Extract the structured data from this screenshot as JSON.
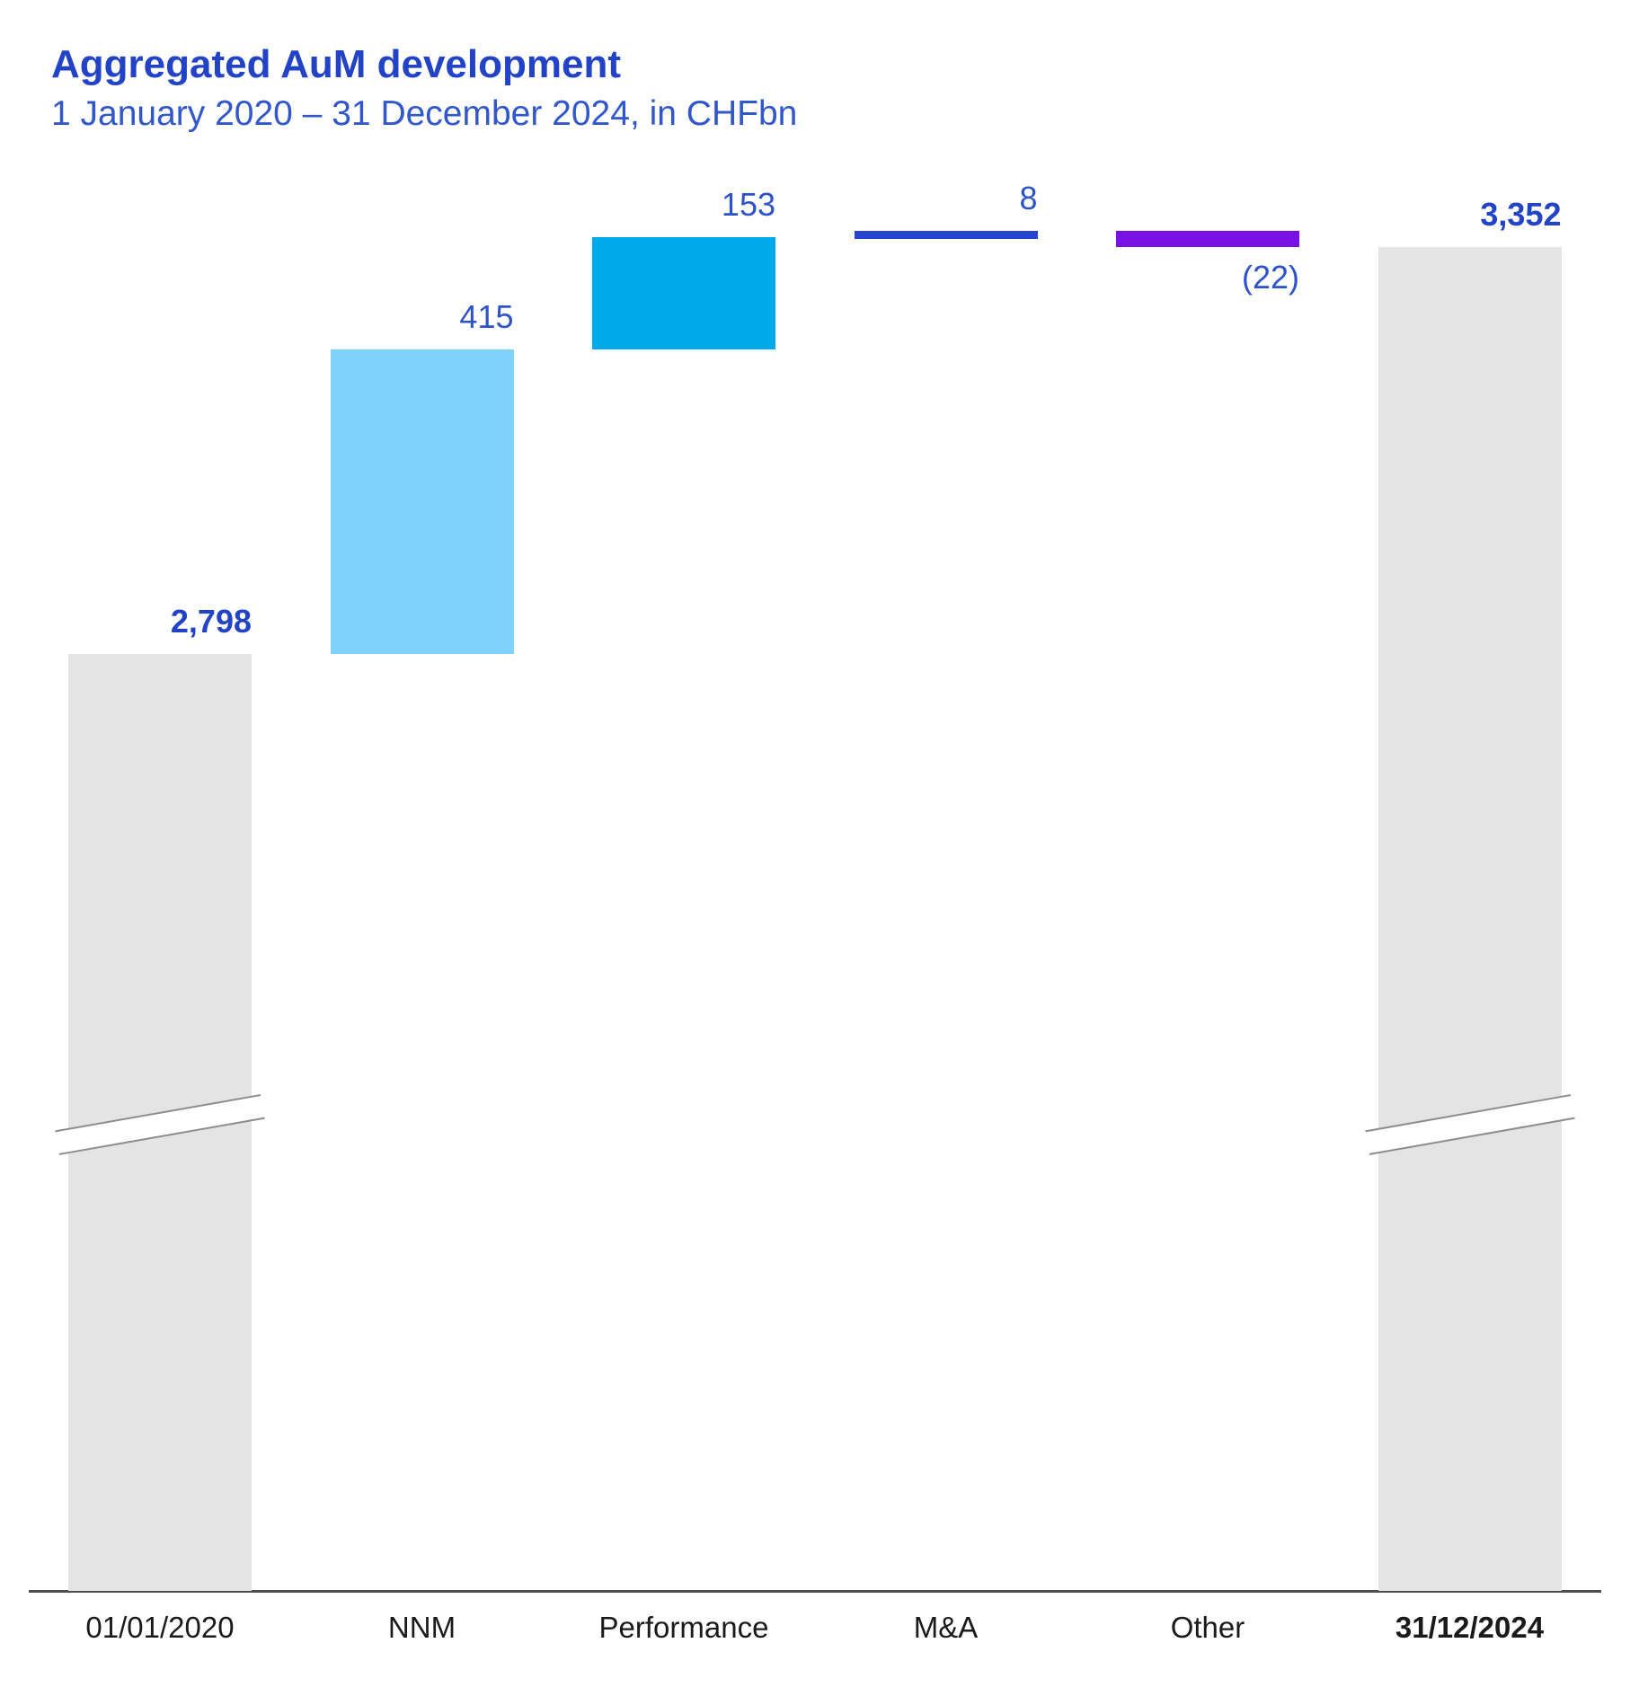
{
  "header": {
    "title": "Aggregated AuM development",
    "subtitle": "1 January 2020 – 31 December 2024, in CHFbn"
  },
  "chart_data": {
    "type": "waterfall",
    "title": "Aggregated AuM development",
    "subtitle": "1 January 2020 – 31 December 2024, in CHFbn",
    "unit": "CHFbn",
    "period": "1 January 2020 – 31 December 2024",
    "categories": [
      "01/01/2020",
      "NNM",
      "Performance",
      "M&A",
      "Other",
      "31/12/2024"
    ],
    "values": [
      2798,
      415,
      153,
      8,
      -22,
      3352
    ],
    "grid": false,
    "legend": "none",
    "axis_break": true,
    "columns": [
      {
        "category": "01/01/2020",
        "role": "total",
        "value": 2798,
        "label": "2,798",
        "color": "#E4E4E4",
        "label_bold": true,
        "category_bold": false,
        "axis_break": true
      },
      {
        "category": "NNM",
        "role": "delta",
        "value": 415,
        "label": "415",
        "color": "#7FD2FB",
        "label_bold": false,
        "category_bold": false,
        "axis_break": false
      },
      {
        "category": "Performance",
        "role": "delta",
        "value": 153,
        "label": "153",
        "color": "#00A9E9",
        "label_bold": false,
        "category_bold": false,
        "axis_break": false
      },
      {
        "category": "M&A",
        "role": "delta",
        "value": 8,
        "label": "8",
        "color": "#2644CF",
        "label_bold": false,
        "category_bold": false,
        "axis_break": false
      },
      {
        "category": "Other",
        "role": "delta",
        "value": -22,
        "label": "(22)",
        "color": "#7911E4",
        "label_bold": false,
        "category_bold": false,
        "axis_break": false
      },
      {
        "category": "31/12/2024",
        "role": "total",
        "value": 3352,
        "label": "3,352",
        "color": "#E4E4E4",
        "label_bold": true,
        "category_bold": true,
        "axis_break": true
      }
    ]
  },
  "colors": {
    "background": "#FFFFFF",
    "title": "#2343C6",
    "subtitle": "#3157CB",
    "value_label": "#2E52C8",
    "value_label_bold": "#2343C6",
    "axis_label": "#1A1A1A",
    "axis_line": "#4D4D4D",
    "break_line": "#8C8C8C"
  }
}
